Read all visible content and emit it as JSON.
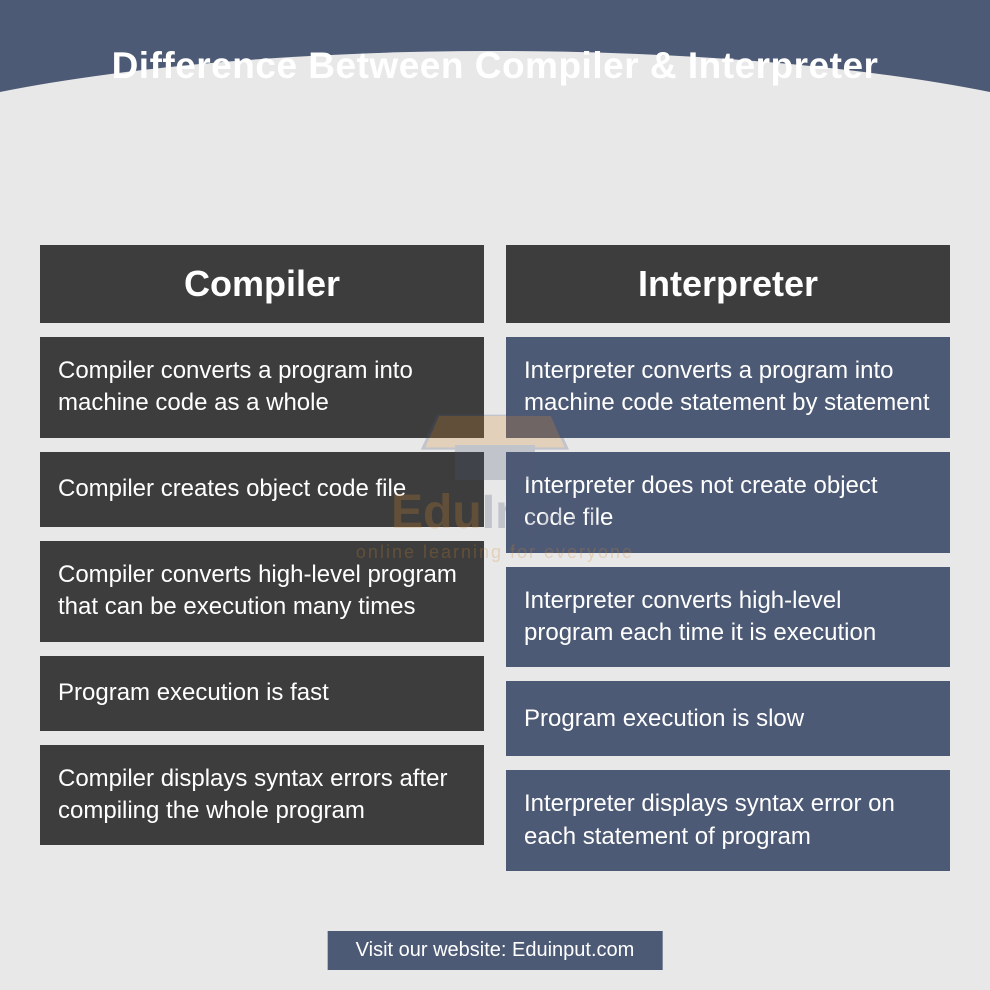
{
  "title": "Difference Between Compiler & Interpreter",
  "columns": {
    "left": {
      "header": "Compiler",
      "bg_color": "#3d3d3d",
      "rows": [
        "Compiler converts a program into machine code as a whole",
        "Compiler creates object code file",
        "Compiler converts high-level program that can be execution many times",
        "Program execution is fast",
        "Compiler displays syntax errors after compiling the whole program"
      ]
    },
    "right": {
      "header": "Interpreter",
      "bg_color": "#4d5a75",
      "rows": [
        "Interpreter converts a program into machine code statement by statement",
        "Interpreter does not create object code file",
        "Interpreter converts high-level program each time it is execution",
        "Program execution is slow",
        "Interpreter displays syntax error on each statement of program"
      ]
    }
  },
  "footer": "Visit our website: Eduinput.com",
  "watermark": {
    "text1": "Edu",
    "text2": "Input",
    "subtitle": "online learning for everyone"
  },
  "colors": {
    "header_bg": "#4d5a75",
    "body_bg": "#e8e8e8",
    "dark_cell": "#3d3d3d",
    "blue_cell": "#4d5a75",
    "text": "#ffffff",
    "accent": "#d68830"
  },
  "typography": {
    "title_fontsize": 37,
    "col_header_fontsize": 36,
    "cell_fontsize": 24,
    "footer_fontsize": 20
  }
}
